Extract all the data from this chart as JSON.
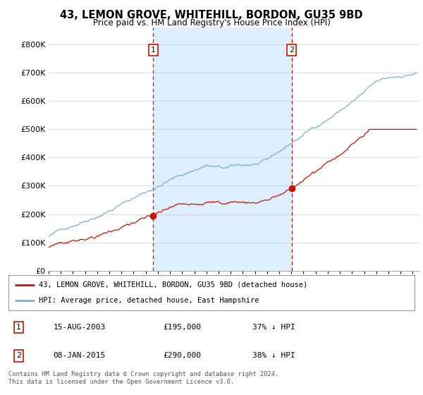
{
  "title": "43, LEMON GROVE, WHITEHILL, BORDON, GU35 9BD",
  "subtitle": "Price paid vs. HM Land Registry's House Price Index (HPI)",
  "ytick_values": [
    0,
    100000,
    200000,
    300000,
    400000,
    500000,
    600000,
    700000,
    800000
  ],
  "ylim": [
    0,
    860000
  ],
  "xlim_start": 1995.0,
  "xlim_end": 2025.5,
  "hpi_color": "#7aafd4",
  "hpi_shade_color": "#ddeeff",
  "price_color": "#cc1100",
  "marker1_x": 2003.62,
  "marker1_y": 195000,
  "marker2_x": 2015.03,
  "marker2_y": 290000,
  "legend_label1": "43, LEMON GROVE, WHITEHILL, BORDON, GU35 9BD (detached house)",
  "legend_label2": "HPI: Average price, detached house, East Hampshire",
  "table_row1": [
    "1",
    "15-AUG-2003",
    "£195,000",
    "37% ↓ HPI"
  ],
  "table_row2": [
    "2",
    "08-JAN-2015",
    "£290,000",
    "38% ↓ HPI"
  ],
  "footnote": "Contains HM Land Registry data © Crown copyright and database right 2024.\nThis data is licensed under the Open Government Licence v3.0.",
  "background_color": "#ffffff",
  "grid_color": "#cccccc"
}
